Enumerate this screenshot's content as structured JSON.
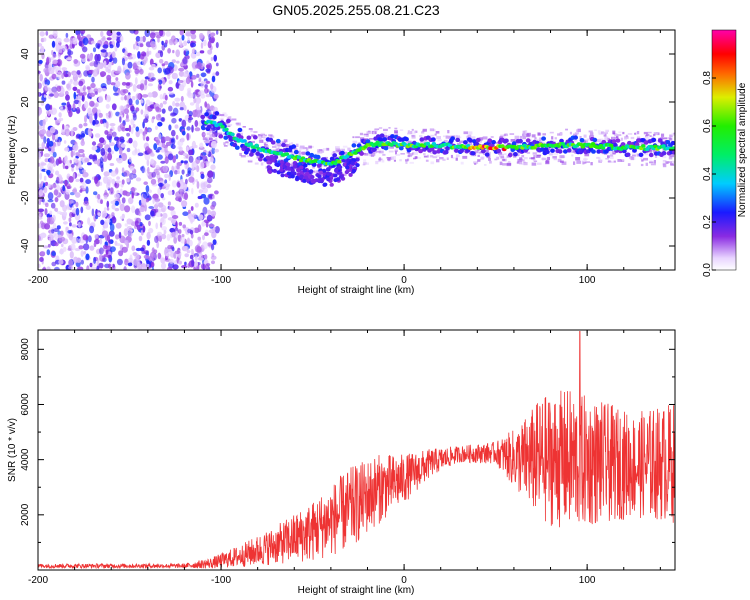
{
  "title": "GN05.2025.255.08.21.C23",
  "chart_data": [
    {
      "type": "heatmap",
      "name": "spectrogram",
      "xlabel": "Height of straight line (km)",
      "ylabel": "Frequency (Hz)",
      "xlim": [
        -200,
        148
      ],
      "ylim": [
        -50,
        50
      ],
      "xticks": [
        -200,
        -100,
        0,
        100
      ],
      "xtick_labels": [
        "-200",
        "-100",
        "0",
        "100"
      ],
      "yticks": [
        -40,
        -20,
        0,
        20,
        40
      ],
      "ytick_labels": [
        "-40",
        "-20",
        "0",
        "20",
        "40"
      ],
      "colorbar": {
        "label": "Normalized spectral amplitude",
        "range": [
          0,
          1
        ],
        "ticks": [
          0.0,
          0.2,
          0.4,
          0.6,
          0.8
        ],
        "tick_labels": [
          "0.0",
          "0.2",
          "0.4",
          "0.6",
          "0.8"
        ]
      },
      "trace_centerline": [
        {
          "x": -107,
          "y": 12
        },
        {
          "x": -100,
          "y": 10
        },
        {
          "x": -90,
          "y": 4
        },
        {
          "x": -80,
          "y": 1
        },
        {
          "x": -70,
          "y": -1
        },
        {
          "x": -60,
          "y": -3
        },
        {
          "x": -50,
          "y": -5
        },
        {
          "x": -40,
          "y": -6
        },
        {
          "x": -30,
          "y": -2
        },
        {
          "x": -20,
          "y": 2
        },
        {
          "x": -10,
          "y": 3
        },
        {
          "x": 0,
          "y": 2
        },
        {
          "x": 20,
          "y": 2
        },
        {
          "x": 40,
          "y": 1
        },
        {
          "x": 60,
          "y": 1
        },
        {
          "x": 80,
          "y": 2
        },
        {
          "x": 100,
          "y": 2
        },
        {
          "x": 120,
          "y": 1
        },
        {
          "x": 148,
          "y": 1
        }
      ],
      "noise_region_x": [
        -200,
        -108
      ]
    },
    {
      "type": "line",
      "name": "snr",
      "xlabel": "Height of straight line (km)",
      "ylabel": "SNR (10 * v/v)",
      "xlim": [
        -200,
        148
      ],
      "ylim": [
        0,
        8700
      ],
      "xticks": [
        -200,
        -100,
        0,
        100
      ],
      "xtick_labels": [
        "-200",
        "-100",
        "0",
        "100"
      ],
      "yticks": [
        2000,
        4000,
        6000,
        8000
      ],
      "ytick_labels": [
        "2000",
        "4000",
        "6000",
        "8000"
      ],
      "color": "#ee3333",
      "envelope": [
        {
          "x": -200,
          "mean": 150,
          "amp": 80
        },
        {
          "x": -120,
          "mean": 150,
          "amp": 80
        },
        {
          "x": -105,
          "mean": 250,
          "amp": 200
        },
        {
          "x": -90,
          "mean": 500,
          "amp": 400
        },
        {
          "x": -70,
          "mean": 900,
          "amp": 700
        },
        {
          "x": -50,
          "mean": 1400,
          "amp": 1100
        },
        {
          "x": -30,
          "mean": 2200,
          "amp": 1500
        },
        {
          "x": -15,
          "mean": 2900,
          "amp": 1300
        },
        {
          "x": 0,
          "mean": 3300,
          "amp": 900
        },
        {
          "x": 15,
          "mean": 3900,
          "amp": 500
        },
        {
          "x": 30,
          "mean": 4200,
          "amp": 300
        },
        {
          "x": 50,
          "mean": 4250,
          "amp": 400
        },
        {
          "x": 62,
          "mean": 4000,
          "amp": 1200
        },
        {
          "x": 75,
          "mean": 4000,
          "amp": 2300
        },
        {
          "x": 90,
          "mean": 4000,
          "amp": 2600
        },
        {
          "x": 105,
          "mean": 3900,
          "amp": 2300
        },
        {
          "x": 125,
          "mean": 3800,
          "amp": 1900
        },
        {
          "x": 148,
          "mean": 3900,
          "amp": 2200
        }
      ],
      "peak": {
        "x": 96,
        "y": 8650
      }
    }
  ]
}
